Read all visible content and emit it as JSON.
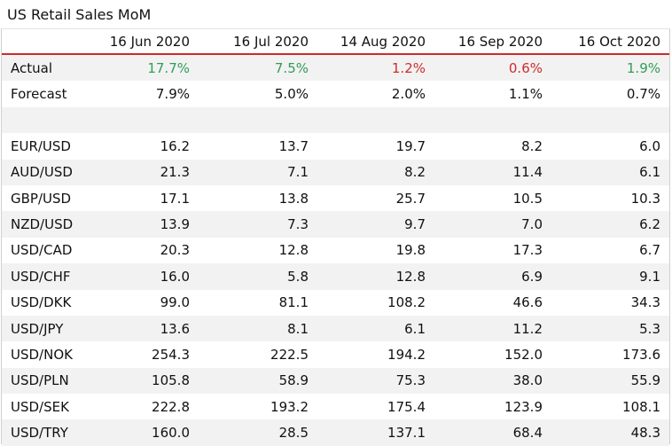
{
  "title": "US Retail Sales MoM",
  "columns": [
    "",
    "16 Jun 2020",
    "16 Jul 2020",
    "14 Aug 2020",
    "16 Sep 2020",
    "16 Oct 2020"
  ],
  "actual": {
    "label": "Actual",
    "values": [
      "17.7%",
      "7.5%",
      "1.2%",
      "0.6%",
      "1.9%"
    ],
    "colors": [
      "#2e9e58",
      "#2e9e58",
      "#cf2b2b",
      "#cf2b2b",
      "#2e9e58"
    ]
  },
  "forecast": {
    "label": "Forecast",
    "values": [
      "7.9%",
      "5.0%",
      "2.0%",
      "1.1%",
      "0.7%"
    ]
  },
  "rows": [
    {
      "label": "EUR/USD",
      "values": [
        "16.2",
        "13.7",
        "19.7",
        "8.2",
        "6.0"
      ]
    },
    {
      "label": "AUD/USD",
      "values": [
        "21.3",
        "7.1",
        "8.2",
        "11.4",
        "6.1"
      ]
    },
    {
      "label": "GBP/USD",
      "values": [
        "17.1",
        "13.8",
        "25.7",
        "10.5",
        "10.3"
      ]
    },
    {
      "label": "NZD/USD",
      "values": [
        "13.9",
        "7.3",
        "9.7",
        "7.0",
        "6.2"
      ]
    },
    {
      "label": "USD/CAD",
      "values": [
        "20.3",
        "12.8",
        "19.8",
        "17.3",
        "6.7"
      ]
    },
    {
      "label": "USD/CHF",
      "values": [
        "16.0",
        "5.8",
        "12.8",
        "6.9",
        "9.1"
      ]
    },
    {
      "label": "USD/DKK",
      "values": [
        "99.0",
        "81.1",
        "108.2",
        "46.6",
        "34.3"
      ]
    },
    {
      "label": "USD/JPY",
      "values": [
        "13.6",
        "8.1",
        "6.1",
        "11.2",
        "5.3"
      ]
    },
    {
      "label": "USD/NOK",
      "values": [
        "254.3",
        "222.5",
        "194.2",
        "152.0",
        "173.6"
      ]
    },
    {
      "label": "USD/PLN",
      "values": [
        "105.8",
        "58.9",
        "75.3",
        "38.0",
        "55.9"
      ]
    },
    {
      "label": "USD/SEK",
      "values": [
        "222.8",
        "193.2",
        "175.4",
        "123.9",
        "108.1"
      ]
    },
    {
      "label": "USD/TRY",
      "values": [
        "160.0",
        "28.5",
        "137.1",
        "68.4",
        "48.3"
      ]
    }
  ],
  "colors": {
    "header_rule": "#cc2b2b",
    "row_stripe": "#f2f2f2",
    "positive": "#2e9e58",
    "negative": "#cf2b2b"
  }
}
